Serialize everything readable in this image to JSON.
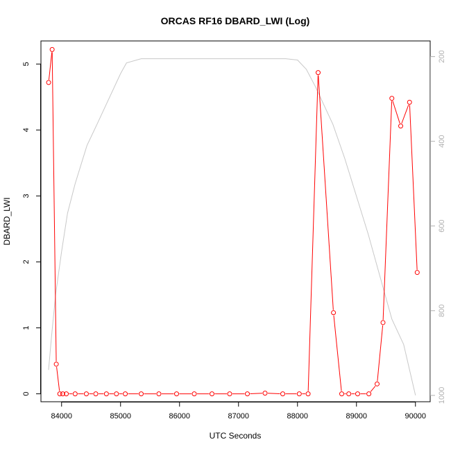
{
  "chart_data": {
    "type": "line",
    "title": "ORCAS RF16 DBARD_LWI (Log)",
    "xlabel": "UTC Seconds",
    "ylabel": "DBARD_LWI",
    "xlim": [
      83650,
      90250
    ],
    "ylim": [
      -0.12,
      5.35
    ],
    "y2lim": [
      1015,
      163
    ],
    "y2_reversed": true,
    "x_ticks": [
      84000,
      85000,
      86000,
      87000,
      88000,
      89000,
      90000
    ],
    "y_ticks": [
      0,
      1,
      2,
      3,
      4,
      5
    ],
    "y2_ticks": [
      200,
      400,
      600,
      800,
      1000
    ],
    "grid": false,
    "series": [
      {
        "name": "",
        "axis": "left",
        "color": "#ff0000",
        "marker": "open-circle",
        "x": [
          83780,
          83840,
          83910,
          83970,
          84020,
          84080,
          84230,
          84420,
          84580,
          84760,
          84930,
          85080,
          85350,
          85650,
          85950,
          86250,
          86550,
          86850,
          87150,
          87450,
          87750,
          88030,
          88180,
          88350,
          88610,
          88750,
          88870,
          89020,
          89210,
          89350,
          89450,
          89600,
          89750,
          89900,
          90030
        ],
        "y": [
          4.72,
          5.22,
          0.45,
          0.0,
          0.0,
          0.0,
          0.0,
          0.0,
          0.0,
          0.0,
          0.0,
          0.0,
          0.0,
          0.0,
          0.0,
          0.0,
          0.0,
          0.0,
          0.0,
          0.01,
          0.0,
          0.0,
          0.0,
          4.87,
          1.23,
          0.0,
          0.0,
          0.0,
          0.0,
          0.15,
          1.08,
          4.48,
          4.06,
          4.42,
          1.84
        ]
      },
      {
        "name": "",
        "axis": "right",
        "color": "#c8c8c8",
        "marker": "none",
        "x": [
          83780,
          83830,
          83900,
          84000,
          84100,
          84230,
          84430,
          84600,
          84800,
          85000,
          85100,
          85350,
          85700,
          86000,
          86500,
          87000,
          87500,
          87800,
          88000,
          88150,
          88300,
          88400,
          88600,
          88800,
          89000,
          89200,
          89400,
          89600,
          89800,
          90000
        ],
        "y": [
          940,
          860,
          760,
          660,
          570,
          500,
          410,
          360,
          300,
          240,
          215,
          205,
          205,
          205,
          205,
          205,
          205,
          205,
          208,
          230,
          270,
          300,
          360,
          440,
          530,
          620,
          720,
          820,
          880,
          1000
        ]
      }
    ]
  }
}
